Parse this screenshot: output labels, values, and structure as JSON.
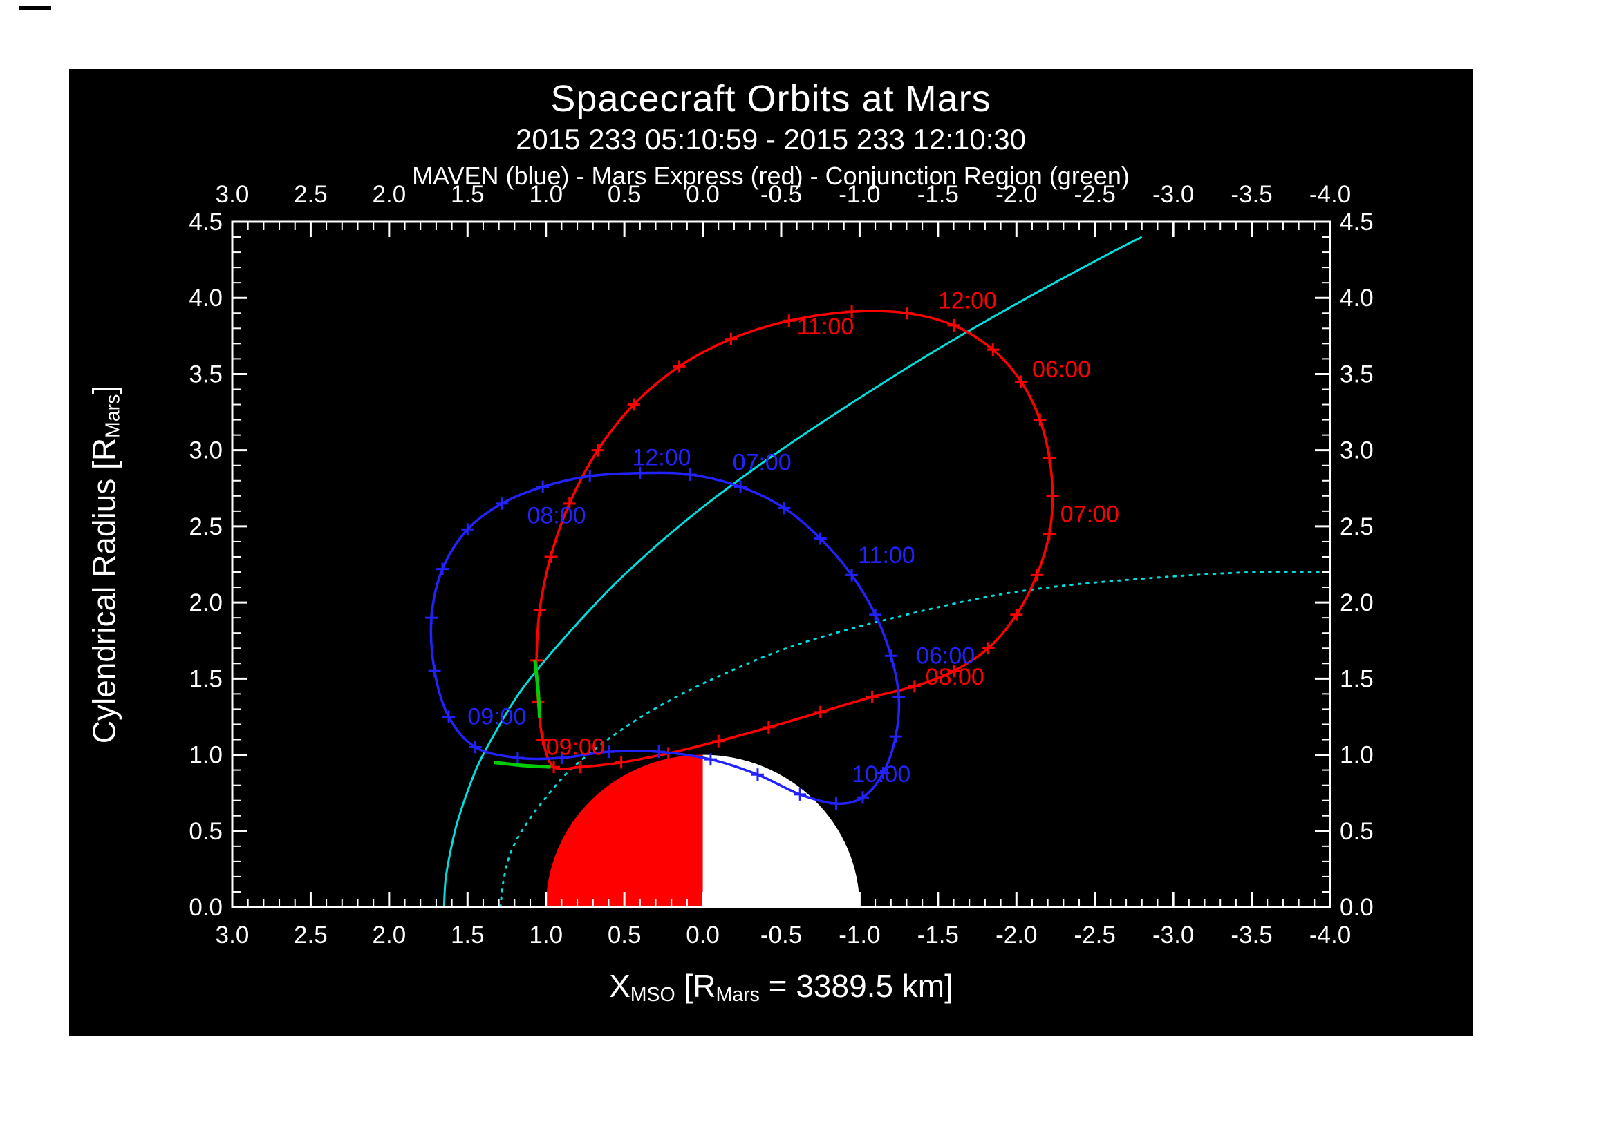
{
  "header": {
    "title": "Spacecraft Orbits at Mars",
    "date_range": "2015 233 05:10:59 - 2015 233 12:10:30",
    "legend": "MAVEN (blue) - Mars Express (red) - Conjunction Region (green)"
  },
  "axes": {
    "x_title": {
      "p1": "X",
      "s1": "MSO",
      "p2": " [R",
      "s2": "Mars",
      "p3": " = 3389.5 km]"
    },
    "y_title": {
      "p1": "Cylendrical Radius [R",
      "s1": "Mars",
      "p2": "]"
    }
  },
  "chart_data": {
    "type": "line",
    "title": "Spacecraft Orbits at Mars",
    "subtitle": "2015 233 05:10:59 - 2015 233 12:10:30",
    "legend_line": "MAVEN (blue) - Mars Express (red) - Conjunction Region (green)",
    "xlabel": "X_MSO [R_Mars = 3389.5 km]",
    "ylabel": "Cylendrical Radius [R_Mars]",
    "x_axis": {
      "left": 3.0,
      "right": -4.0,
      "major_step": 0.5,
      "minor_step": 0.1,
      "tick_labels": [
        "3.0",
        "2.5",
        "2.0",
        "1.5",
        "1.0",
        "0.5",
        "0.0",
        "-0.5",
        "-1.0",
        "-1.5",
        "-2.0",
        "-2.5",
        "-3.0",
        "-3.5",
        "-4.0"
      ]
    },
    "y_axis": {
      "min": 0.0,
      "max": 4.5,
      "major_step": 0.5,
      "minor_step": 0.1,
      "tick_labels": [
        "0.0",
        "0.5",
        "1.0",
        "1.5",
        "2.0",
        "2.5",
        "3.0",
        "3.5",
        "4.0",
        "4.5"
      ]
    },
    "mars": {
      "radius": 1.0,
      "dayside_color": "#ff0000",
      "nightside_color": "#ffffff"
    },
    "series": [
      {
        "name": "bow-shock",
        "color": "#00dddd",
        "width": 3,
        "style": "solid",
        "smooth": true,
        "closed": false,
        "markers": false,
        "points": [
          [
            1.65,
            0.0
          ],
          [
            1.64,
            0.18
          ],
          [
            1.61,
            0.36
          ],
          [
            1.57,
            0.54
          ],
          [
            1.51,
            0.73
          ],
          [
            1.43,
            0.94
          ],
          [
            1.31,
            1.17
          ],
          [
            1.16,
            1.42
          ],
          [
            0.94,
            1.7
          ],
          [
            0.64,
            2.04
          ],
          [
            0.45,
            2.23
          ],
          [
            0.21,
            2.45
          ],
          [
            -0.08,
            2.69
          ],
          [
            -0.44,
            2.96
          ],
          [
            -0.89,
            3.27
          ],
          [
            -1.46,
            3.64
          ],
          [
            -2.05,
            3.99
          ],
          [
            -2.59,
            4.29
          ],
          [
            -2.8,
            4.4
          ]
        ],
        "labels": []
      },
      {
        "name": "magnetopause",
        "color": "#00dddd",
        "width": 3,
        "style": "dotted",
        "smooth": true,
        "closed": false,
        "markers": false,
        "points": [
          [
            1.29,
            0.0
          ],
          [
            1.27,
            0.18
          ],
          [
            1.22,
            0.37
          ],
          [
            1.11,
            0.57
          ],
          [
            0.92,
            0.82
          ],
          [
            0.78,
            0.96
          ],
          [
            0.58,
            1.12
          ],
          [
            0.31,
            1.3
          ],
          [
            -0.09,
            1.51
          ],
          [
            -0.68,
            1.75
          ],
          [
            -1.59,
            1.99
          ],
          [
            -2.21,
            2.1
          ],
          [
            -2.98,
            2.17
          ],
          [
            -3.54,
            2.2
          ],
          [
            -4.0,
            2.2
          ]
        ],
        "labels": []
      },
      {
        "name": "mars-express-orbit",
        "color": "#ff0000",
        "width": 3.5,
        "style": "solid",
        "smooth": true,
        "closed": true,
        "markers": true,
        "points": [
          [
            0.95,
            0.92
          ],
          [
            1.02,
            1.1
          ],
          [
            1.05,
            1.35
          ],
          [
            1.06,
            1.62
          ],
          [
            1.04,
            1.95
          ],
          [
            0.97,
            2.3
          ],
          [
            0.85,
            2.65
          ],
          [
            0.67,
            3.0
          ],
          [
            0.44,
            3.3
          ],
          [
            0.15,
            3.55
          ],
          [
            -0.18,
            3.73
          ],
          [
            -0.55,
            3.85
          ],
          [
            -0.95,
            3.91
          ],
          [
            -1.3,
            3.9
          ],
          [
            -1.6,
            3.82
          ],
          [
            -1.85,
            3.66
          ],
          [
            -2.03,
            3.45
          ],
          [
            -2.15,
            3.2
          ],
          [
            -2.21,
            2.95
          ],
          [
            -2.23,
            2.7
          ],
          [
            -2.21,
            2.45
          ],
          [
            -2.13,
            2.18
          ],
          [
            -2.0,
            1.92
          ],
          [
            -1.82,
            1.7
          ],
          [
            -1.6,
            1.55
          ],
          [
            -1.35,
            1.45
          ],
          [
            -1.08,
            1.38
          ],
          [
            -0.75,
            1.28
          ],
          [
            -0.42,
            1.18
          ],
          [
            -0.1,
            1.09
          ],
          [
            0.22,
            1.01
          ],
          [
            0.52,
            0.95
          ],
          [
            0.78,
            0.92
          ]
        ],
        "labels": [
          {
            "text": "12:00",
            "x": -1.5,
            "y": 3.93
          },
          {
            "text": "11:00",
            "x": -0.6,
            "y": 3.76
          },
          {
            "text": "06:00",
            "x": -2.1,
            "y": 3.48
          },
          {
            "text": "07:00",
            "x": -2.28,
            "y": 2.53
          },
          {
            "text": "08:00",
            "x": -1.42,
            "y": 1.46
          },
          {
            "text": "09:00",
            "x": 1.0,
            "y": 1.0
          }
        ]
      },
      {
        "name": "maven-orbit",
        "color": "#2222ff",
        "width": 3.5,
        "style": "solid",
        "smooth": true,
        "closed": true,
        "markers": true,
        "points": [
          [
            1.45,
            1.05
          ],
          [
            1.62,
            1.25
          ],
          [
            1.71,
            1.55
          ],
          [
            1.73,
            1.9
          ],
          [
            1.66,
            2.22
          ],
          [
            1.5,
            2.48
          ],
          [
            1.28,
            2.65
          ],
          [
            1.02,
            2.76
          ],
          [
            0.72,
            2.83
          ],
          [
            0.4,
            2.85
          ],
          [
            0.08,
            2.84
          ],
          [
            -0.24,
            2.76
          ],
          [
            -0.52,
            2.62
          ],
          [
            -0.75,
            2.42
          ],
          [
            -0.95,
            2.18
          ],
          [
            -1.1,
            1.92
          ],
          [
            -1.2,
            1.65
          ],
          [
            -1.25,
            1.38
          ],
          [
            -1.23,
            1.12
          ],
          [
            -1.15,
            0.88
          ],
          [
            -1.02,
            0.72
          ],
          [
            -0.85,
            0.68
          ],
          [
            -0.62,
            0.74
          ],
          [
            -0.35,
            0.87
          ],
          [
            -0.05,
            0.97
          ],
          [
            0.28,
            1.02
          ],
          [
            0.6,
            1.02
          ],
          [
            0.9,
            0.98
          ],
          [
            1.18,
            0.98
          ]
        ],
        "labels": [
          {
            "text": "12:00",
            "x": 0.45,
            "y": 2.9
          },
          {
            "text": "07:00",
            "x": -0.19,
            "y": 2.87
          },
          {
            "text": "08:00",
            "x": 1.12,
            "y": 2.52
          },
          {
            "text": "11:00",
            "x": -0.99,
            "y": 2.26
          },
          {
            "text": "06:00",
            "x": -1.36,
            "y": 1.6
          },
          {
            "text": "09:00",
            "x": 1.5,
            "y": 1.2
          },
          {
            "text": "10:00",
            "x": -0.95,
            "y": 0.82
          }
        ]
      },
      {
        "name": "conjunction-region-1",
        "color": "#00cc00",
        "width": 5,
        "style": "solid",
        "smooth": true,
        "closed": false,
        "markers": false,
        "points": [
          [
            1.07,
            1.62
          ],
          [
            1.05,
            1.42
          ],
          [
            1.04,
            1.24
          ]
        ],
        "labels": []
      },
      {
        "name": "conjunction-region-2",
        "color": "#00cc00",
        "width": 5,
        "style": "solid",
        "smooth": true,
        "closed": false,
        "markers": false,
        "points": [
          [
            1.33,
            0.95
          ],
          [
            1.15,
            0.93
          ],
          [
            0.97,
            0.92
          ]
        ],
        "labels": []
      }
    ]
  }
}
